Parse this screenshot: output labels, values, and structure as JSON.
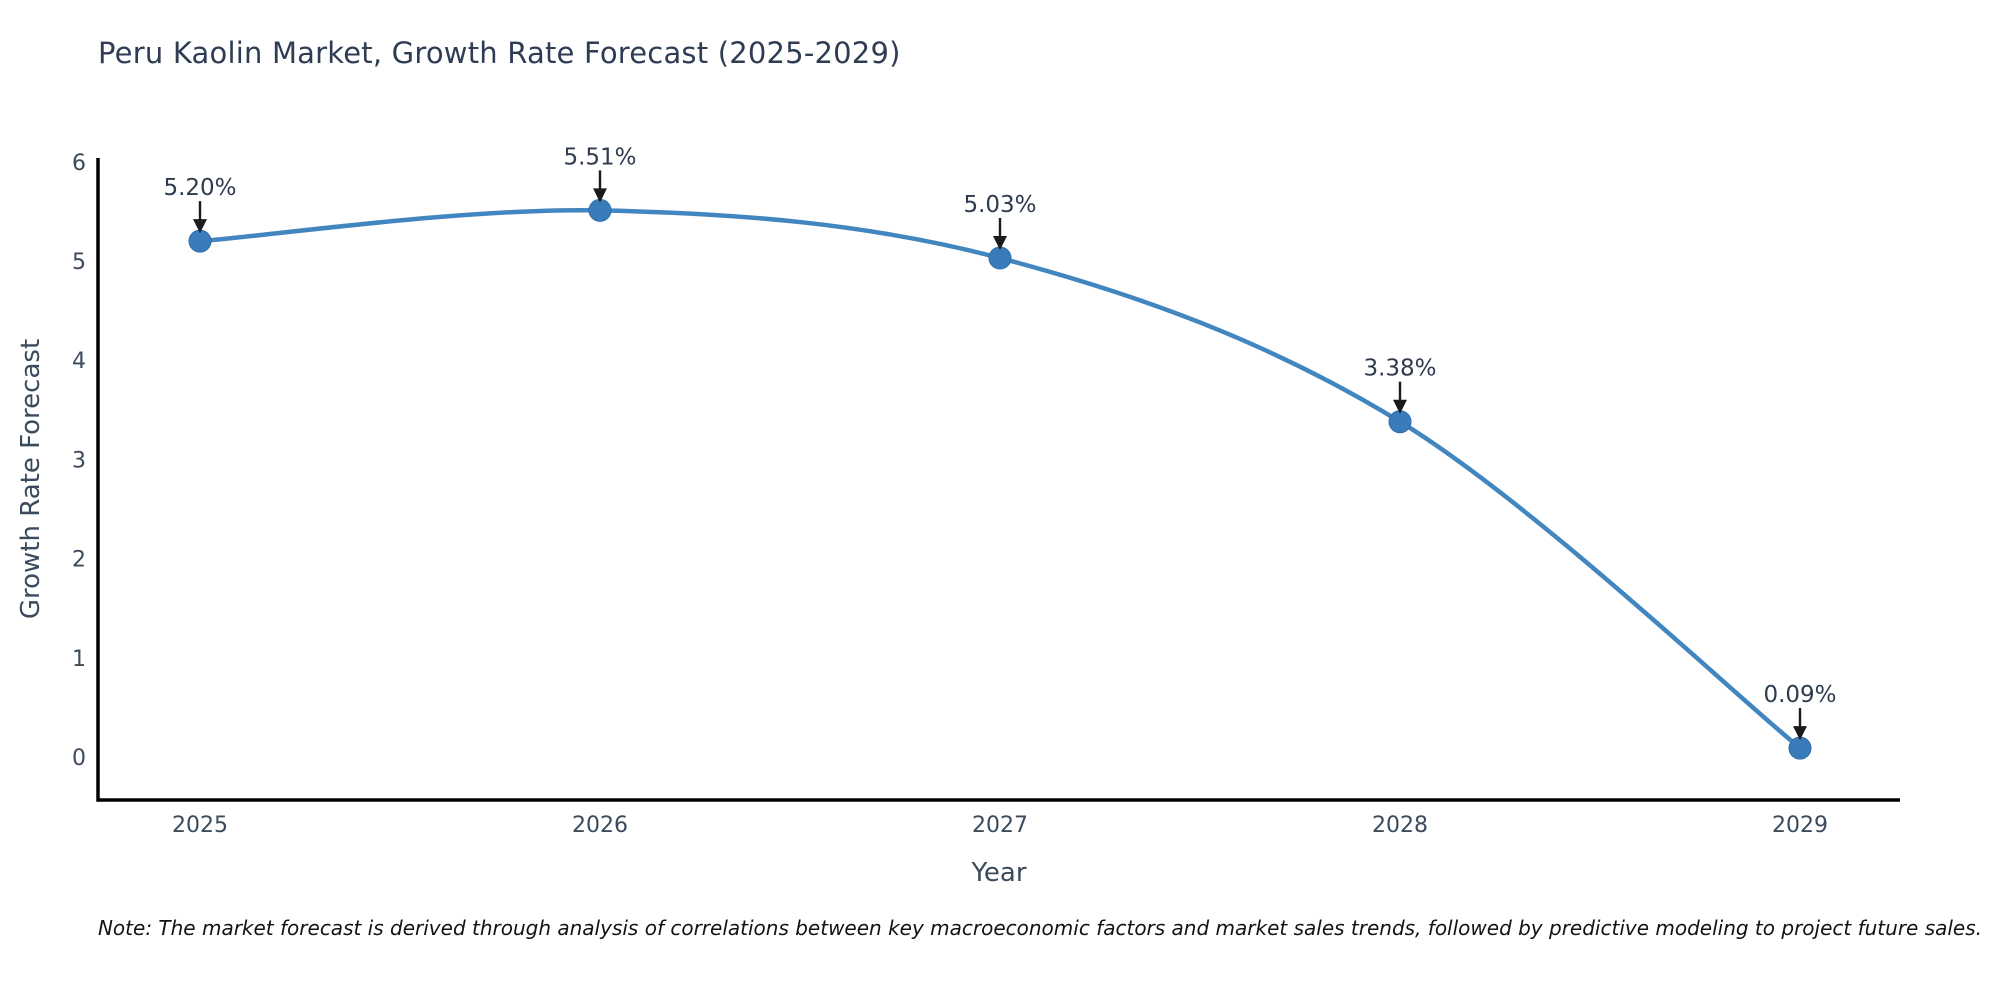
{
  "chart_data": {
    "type": "line",
    "title": "Peru Kaolin Market, Growth Rate Forecast (2025-2029)",
    "xlabel": "Year",
    "ylabel": "Growth Rate Forecast",
    "x": [
      2025,
      2026,
      2027,
      2028,
      2029
    ],
    "series": [
      {
        "name": "Growth Rate Forecast",
        "values": [
          5.2,
          5.51,
          5.03,
          3.38,
          0.09
        ],
        "point_labels": [
          "5.20%",
          "5.51%",
          "5.03%",
          "3.38%",
          "0.09%"
        ]
      }
    ],
    "yticks": [
      0,
      1,
      2,
      3,
      4,
      5,
      6
    ],
    "ylim": [
      0,
      6
    ],
    "xlim": [
      2024.7,
      2029.25
    ],
    "grid": false,
    "legend_position": "none",
    "line_shape": "spline",
    "line_color": "#4286c0",
    "marker_color": "#3a7cba",
    "marker_edge_color": "#2d6ca8",
    "annotation_color": "#1b1b1b",
    "annotation_text_color": "#2f3b4e",
    "axis_color": "#000000",
    "tick_color": "#3b4a5c"
  },
  "note": "Note: The market forecast is derived through analysis of correlations between key macroeconomic factors and market sales trends, followed by predictive modeling to project future sales."
}
